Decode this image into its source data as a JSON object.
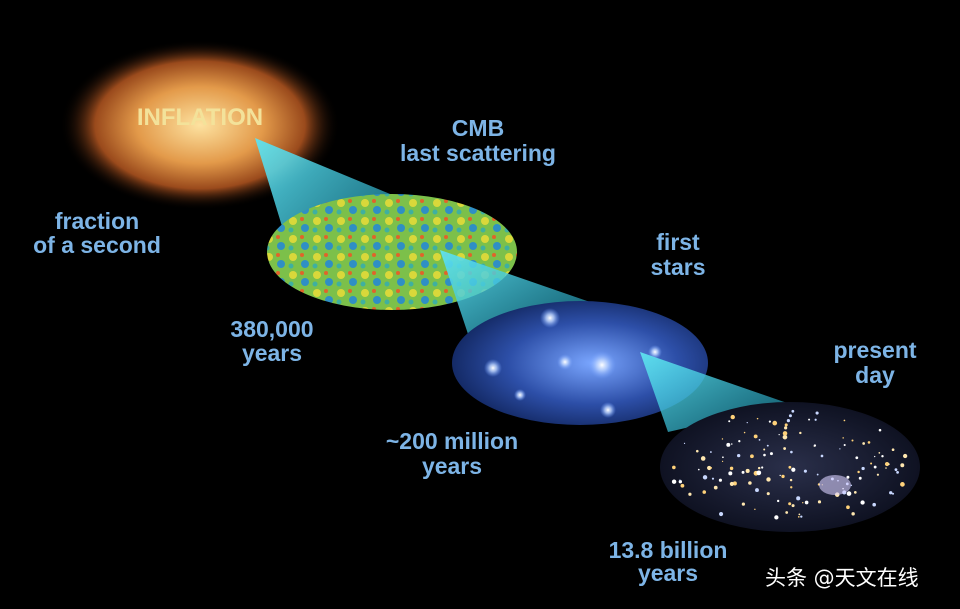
{
  "stages": [
    {
      "title": "INFLATION",
      "time": [
        "fraction",
        "of a second"
      ]
    },
    {
      "title": [
        "CMB",
        "last scattering"
      ],
      "time": [
        "380,000",
        "years"
      ]
    },
    {
      "title": [
        "first",
        "stars"
      ],
      "time": [
        "~200 million",
        "years"
      ]
    },
    {
      "title": [
        "present",
        "day"
      ],
      "time": [
        "13.8 billion",
        "years"
      ]
    }
  ],
  "watermark": "头条 @天文在线",
  "colors": {
    "label": "#7db4e6",
    "inflation_text": "#f3e29a",
    "cone": "#3fd2e8"
  }
}
